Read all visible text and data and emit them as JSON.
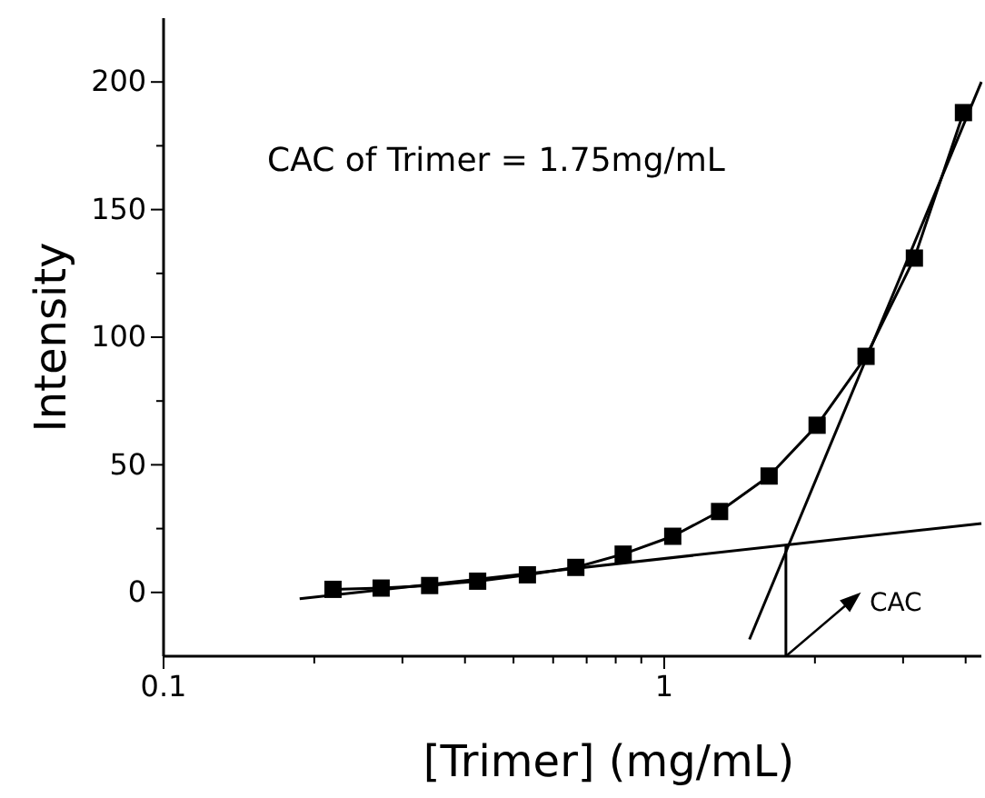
{
  "chart_data": {
    "type": "line",
    "xlabel": "[Trimer] (mg/mL)",
    "ylabel": "Intensity",
    "log": "x",
    "grid": false,
    "xlim": [
      0.1,
      4.3
    ],
    "ylim": [
      -25,
      225
    ],
    "xticks": [
      0.1,
      {
        "value": 0.2,
        "label": null
      },
      {
        "value": 0.3,
        "label": null
      },
      {
        "value": 0.4,
        "label": null
      },
      {
        "value": 0.5,
        "label": null
      },
      {
        "value": 0.6,
        "label": null
      },
      {
        "value": 0.7,
        "label": null
      },
      {
        "value": 0.8,
        "label": null
      },
      {
        "value": 0.9,
        "label": null
      },
      1,
      {
        "value": 2,
        "label": null
      },
      {
        "value": 3,
        "label": null
      },
      {
        "value": 4,
        "label": null
      }
    ],
    "yticks": [
      0,
      {
        "value": 25,
        "label": null
      },
      50,
      {
        "value": 75,
        "label": null
      },
      100,
      {
        "value": 125,
        "label": null
      },
      150,
      {
        "value": 175,
        "label": null
      },
      200
    ],
    "series": [
      {
        "color": "#000000",
        "marker": "square",
        "x": [
          0.218,
          0.272,
          0.34,
          0.424,
          0.533,
          0.666,
          0.828,
          1.04,
          1.29,
          1.62,
          2.02,
          2.53,
          3.16,
          3.96
        ],
        "values": [
          1.2,
          1.7,
          2.7,
          4.4,
          6.9,
          9.8,
          15,
          22,
          31.7,
          45.6,
          65.5,
          92.5,
          131,
          188
        ]
      },
      {
        "color": "#000000",
        "marker": "none",
        "x": [
          0.187,
          4.3
        ],
        "values": [
          -2.5,
          27
        ]
      },
      {
        "color": "#000000",
        "marker": "none",
        "x": [
          1.48,
          4.3
        ],
        "values": [
          -18.4,
          200
        ]
      },
      {
        "color": "#000000",
        "marker": "none",
        "x": [
          1.75,
          1.75
        ],
        "values": [
          -25,
          18.4
        ]
      }
    ],
    "annotations": [
      "CAC of Trimer = 1.75mg/mL",
      "CAC"
    ]
  }
}
